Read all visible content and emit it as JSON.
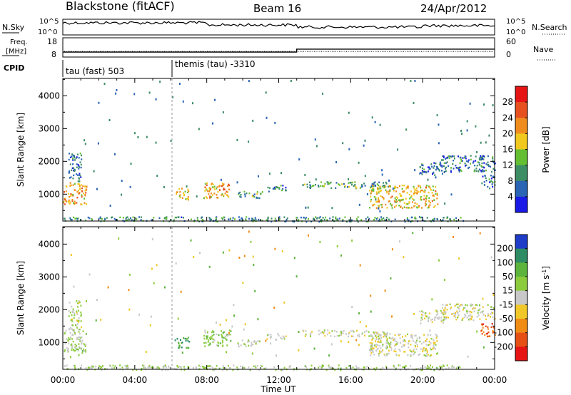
{
  "header": {
    "station": "Blackstone (fitACF)",
    "beam": "Beam 16",
    "date": "24/Apr/2012"
  },
  "noise_panel": {
    "left_label": "N.Sky",
    "right_label": "N.Search",
    "ticks": [
      "10^5",
      "10^0"
    ]
  },
  "freq_panel": {
    "label_line1": "Freq.",
    "label_line2": "[MHz]",
    "left_ticks": [
      "18",
      "8"
    ],
    "right_label": "Nave",
    "right_ticks": [
      "60",
      "0"
    ],
    "freq_mhz": 10.3,
    "nave": [
      {
        "t": 0.0,
        "v": 14
      },
      {
        "t": 13.0,
        "v": 14
      },
      {
        "t": 13.0,
        "v": 26
      },
      {
        "t": 24.0,
        "v": 26
      }
    ]
  },
  "cpid_panel": {
    "label": "CPID",
    "modes": [
      {
        "start": 0.0,
        "text": "tau (fast) 503"
      },
      {
        "start": 6.0,
        "text": "themis (tau) -3310"
      }
    ]
  },
  "power_panel": {
    "ylabel": "Slant Range [km]",
    "yticks": [
      "1000",
      "2000",
      "3000",
      "4000"
    ],
    "colorbar_label": "Power [dB]",
    "colorbar_ticks": [
      "4",
      "8",
      "12",
      "16",
      "20",
      "24",
      "28"
    ],
    "colors": [
      "#1a1ae6",
      "#2a64b4",
      "#3c8c64",
      "#64be32",
      "#f0c81e",
      "#f08c1e",
      "#e6501e",
      "#e61414"
    ]
  },
  "velocity_panel": {
    "ylabel": "Slant Range [km]",
    "yticks": [
      "1000",
      "2000",
      "3000",
      "4000"
    ],
    "colorbar_label": "Velocity [m s^-1]",
    "colorbar_ticks": [
      "200",
      "100",
      "50",
      "15",
      "-15",
      "-50",
      "-100",
      "-200"
    ],
    "colors": [
      "#1e3cc8",
      "#2d8c64",
      "#5cb43c",
      "#8ccc3c",
      "#c8c8c8",
      "#f0c828",
      "#f08c14",
      "#e65014",
      "#e61414"
    ]
  },
  "xaxis": {
    "label": "Time UT",
    "ticks": [
      "00:00",
      "04:00",
      "08:00",
      "12:00",
      "16:00",
      "20:00",
      "00:00"
    ]
  },
  "chart_data": {
    "type": "heatmap",
    "title": "Blackstone (fitACF) Beam 16 24/Apr/2012",
    "xlabel": "Time UT",
    "ylabel": "Slant Range [km]",
    "xlim": [
      0,
      24
    ],
    "ylim": [
      180,
      4530
    ],
    "series": [
      {
        "name": "Power [dB]",
        "range": [
          0,
          30
        ]
      },
      {
        "name": "Velocity [m s^-1]",
        "range": [
          -250,
          250
        ]
      }
    ],
    "echo_regions": [
      {
        "t0": 0.0,
        "t1": 1.3,
        "r0": 700,
        "r1": 1400,
        "power": 20,
        "velocity": 40
      },
      {
        "t0": 0.3,
        "t1": 1.0,
        "r0": 1400,
        "r1": 2300,
        "power": 6,
        "velocity": 20
      },
      {
        "t0": 6.2,
        "t1": 7.0,
        "r0": 850,
        "r1": 1200,
        "power": 16,
        "velocity": 150
      },
      {
        "t0": 7.8,
        "t1": 9.3,
        "r0": 900,
        "r1": 1400,
        "power": 20,
        "velocity": 70
      },
      {
        "t0": 9.7,
        "t1": 11.1,
        "r0": 900,
        "r1": 1100,
        "power": 10,
        "velocity": 20
      },
      {
        "t0": 11.3,
        "t1": 12.4,
        "r0": 1100,
        "r1": 1300,
        "power": 6,
        "velocity": 15
      },
      {
        "t0": 13.3,
        "t1": 18.2,
        "r0": 1200,
        "r1": 1400,
        "power": 10,
        "velocity": 0
      },
      {
        "t0": 17.0,
        "t1": 20.8,
        "r0": 600,
        "r1": 1300,
        "power": 18,
        "velocity": -10
      },
      {
        "t0": 19.8,
        "t1": 21.2,
        "r0": 1600,
        "r1": 2000,
        "power": 6,
        "velocity": 0
      },
      {
        "t0": 21.0,
        "t1": 24.0,
        "r0": 1700,
        "r1": 2200,
        "power": 6,
        "velocity": -10
      },
      {
        "t0": 23.2,
        "t1": 24.0,
        "r0": 1200,
        "r1": 1600,
        "power": 6,
        "velocity": -180
      },
      {
        "t0": 0.0,
        "t1": 22.3,
        "r0": 180,
        "r1": 330,
        "power": 8,
        "velocity": 40
      }
    ]
  }
}
